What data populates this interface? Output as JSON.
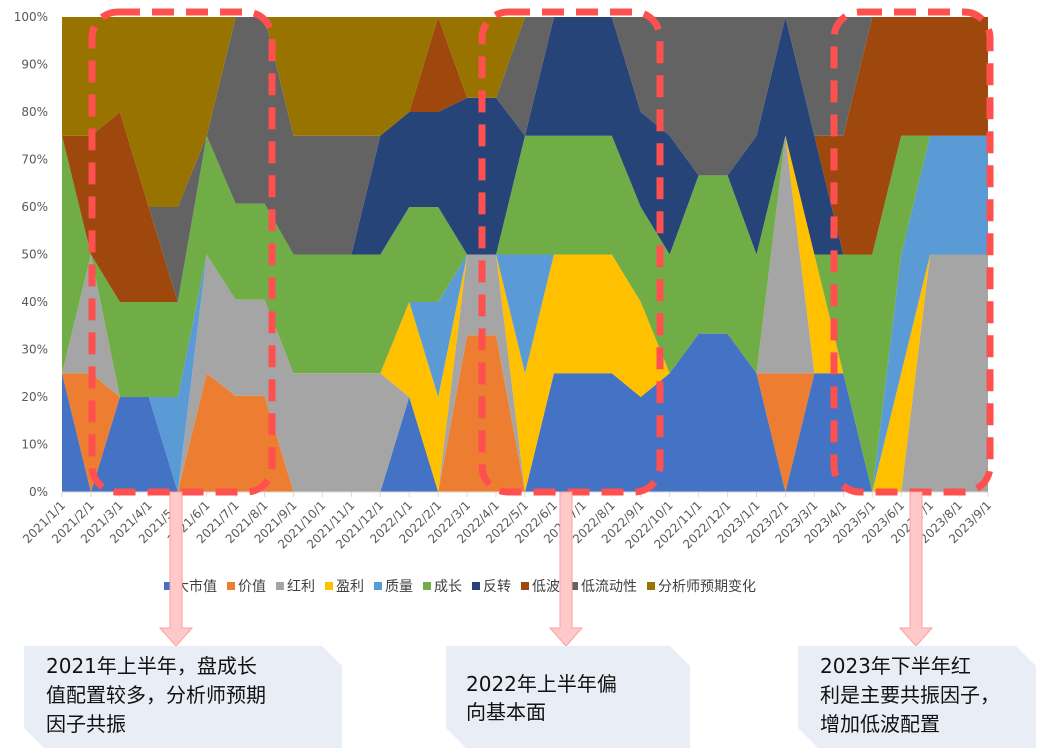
{
  "chart_data": {
    "type": "area",
    "stacked": "percent",
    "x": [
      "2021/1/1",
      "2021/2/1",
      "2021/3/1",
      "2021/4/1",
      "2021/5/1",
      "2021/6/1",
      "2021/7/1",
      "2021/8/1",
      "2021/9/1",
      "2021/10/1",
      "2021/11/1",
      "2021/12/1",
      "2022/1/1",
      "2022/2/1",
      "2022/3/1",
      "2022/4/1",
      "2022/5/1",
      "2022/6/1",
      "2022/7/1",
      "2022/8/1",
      "2022/9/1",
      "2022/10/1",
      "2022/11/1",
      "2022/12/1",
      "2023/1/1",
      "2023/2/1",
      "2023/3/1",
      "2023/4/1",
      "2023/5/1",
      "2023/6/1",
      "2023/7/1",
      "2023/8/1",
      "2023/9/1"
    ],
    "y_ticks": [
      "0%",
      "10%",
      "20%",
      "30%",
      "40%",
      "50%",
      "60%",
      "70%",
      "80%",
      "90%",
      "100%"
    ],
    "ylim": [
      0,
      100
    ],
    "series": [
      {
        "name": "大市值",
        "color": "#4472C4",
        "values": [
          25,
          0,
          20,
          20,
          0,
          0,
          0,
          0,
          0,
          0,
          0,
          0,
          20,
          0,
          0,
          0,
          0,
          25,
          25,
          25,
          20,
          25,
          33,
          33,
          25,
          0,
          25,
          25,
          0,
          0,
          0,
          0,
          0
        ]
      },
      {
        "name": "价值",
        "color": "#ED7D31",
        "values": [
          0,
          25,
          0,
          0,
          0,
          25,
          17,
          17,
          0,
          0,
          0,
          0,
          0,
          0,
          33,
          33,
          0,
          0,
          0,
          0,
          0,
          0,
          0,
          0,
          0,
          25,
          0,
          0,
          0,
          0,
          0,
          0,
          0
        ]
      },
      {
        "name": "红利",
        "color": "#A5A5A5",
        "values": [
          0,
          25,
          0,
          0,
          0,
          25,
          17,
          17,
          25,
          25,
          25,
          25,
          0,
          0,
          17,
          17,
          0,
          0,
          0,
          0,
          0,
          0,
          0,
          0,
          0,
          50,
          0,
          0,
          0,
          0,
          50,
          50,
          50
        ]
      },
      {
        "name": "盈利",
        "color": "#FFC000",
        "values": [
          0,
          0,
          0,
          0,
          0,
          0,
          0,
          0,
          0,
          0,
          0,
          0,
          20,
          20,
          0,
          0,
          25,
          25,
          25,
          25,
          20,
          0,
          0,
          0,
          0,
          0,
          25,
          0,
          0,
          25,
          0,
          0,
          0
        ]
      },
      {
        "name": "质量",
        "color": "#5B9BD5",
        "values": [
          0,
          0,
          0,
          0,
          20,
          0,
          0,
          0,
          0,
          0,
          0,
          0,
          0,
          20,
          0,
          0,
          25,
          0,
          0,
          0,
          0,
          0,
          0,
          0,
          0,
          0,
          0,
          0,
          0,
          25,
          25,
          25,
          25
        ]
      },
      {
        "name": "成长",
        "color": "#70AD47",
        "values": [
          50,
          0,
          20,
          20,
          20,
          25,
          17,
          17,
          25,
          25,
          25,
          25,
          20,
          20,
          0,
          0,
          25,
          25,
          25,
          25,
          20,
          25,
          33,
          33,
          25,
          0,
          0,
          25,
          50,
          25,
          0,
          0,
          0
        ]
      },
      {
        "name": "反转",
        "color": "#264478",
        "values": [
          0,
          0,
          0,
          0,
          0,
          0,
          0,
          0,
          0,
          0,
          0,
          25,
          20,
          20,
          33,
          33,
          0,
          25,
          25,
          25,
          20,
          25,
          0,
          0,
          25,
          25,
          25,
          0,
          0,
          0,
          0,
          0,
          0
        ]
      },
      {
        "name": "低波",
        "color": "#9E480E",
        "values": [
          0,
          25,
          40,
          20,
          0,
          0,
          0,
          0,
          0,
          0,
          0,
          0,
          0,
          20,
          0,
          0,
          0,
          0,
          0,
          0,
          0,
          0,
          0,
          0,
          0,
          0,
          0,
          25,
          50,
          25,
          25,
          25,
          25
        ]
      },
      {
        "name": "低流动性",
        "color": "#636363",
        "values": [
          0,
          0,
          0,
          0,
          20,
          0,
          33,
          33,
          25,
          25,
          25,
          0,
          0,
          0,
          0,
          0,
          25,
          0,
          0,
          0,
          20,
          25,
          33,
          33,
          25,
          0,
          25,
          25,
          0,
          0,
          0,
          0,
          0
        ]
      },
      {
        "name": "分析师预期变化",
        "color": "#997300",
        "values": [
          25,
          25,
          20,
          40,
          40,
          25,
          0,
          0,
          25,
          25,
          25,
          25,
          20,
          0,
          17,
          17,
          0,
          0,
          0,
          0,
          0,
          0,
          0,
          0,
          0,
          0,
          0,
          0,
          0,
          0,
          0,
          0,
          0
        ]
      }
    ]
  },
  "callouts": [
    {
      "text": "2021年上半年，盘成长\n值配置较多，分析师预期\n因子共振"
    },
    {
      "text": "2022年上半年偏\n向基本面"
    },
    {
      "text": "2023年下半年红\n利是主要共振因子，\n增加低波配置"
    }
  ]
}
